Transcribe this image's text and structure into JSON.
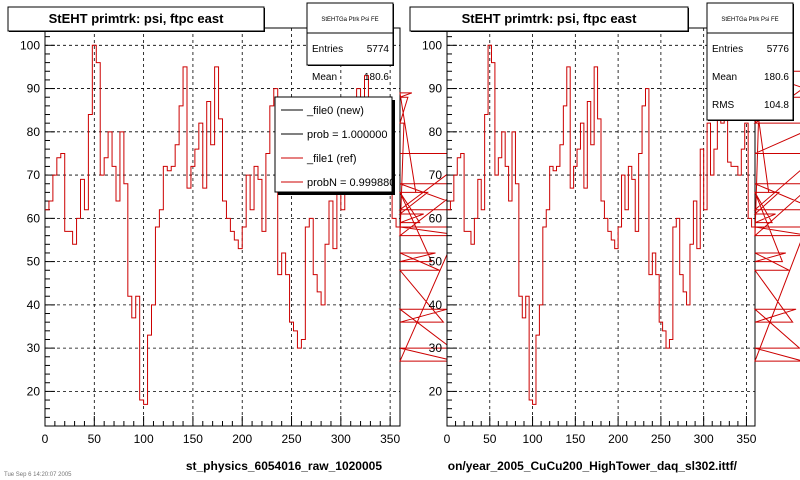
{
  "chart_data": [
    {
      "type": "histogram",
      "title": "StEHT primtrk: psi, ftpc east",
      "xlabel": "st_physics_6054016_raw_1020005",
      "xlim": [
        0,
        360
      ],
      "ylim": [
        12,
        104
      ],
      "x_ticks": [
        "0",
        "50",
        "100",
        "150",
        "200",
        "250",
        "300",
        "350"
      ],
      "y_ticks": [
        "20",
        "30",
        "40",
        "50",
        "60",
        "70",
        "80",
        "90",
        "100"
      ],
      "grid": true,
      "bin_width": 4,
      "series": [
        {
          "name": "_file0 (new)",
          "color": "#000000",
          "values": []
        },
        {
          "name": "_file1 (ref)",
          "color": "#cc0000",
          "values": [
            62,
            64,
            70,
            74,
            75,
            57,
            57,
            54,
            60,
            69,
            62,
            84,
            100,
            96,
            70,
            74,
            80,
            72,
            64,
            80,
            68,
            42,
            37,
            42,
            18,
            17,
            33,
            40,
            58,
            62,
            72,
            71,
            72,
            77,
            86,
            95,
            67,
            72,
            76,
            82,
            67,
            87,
            77,
            95,
            83,
            64,
            60,
            57,
            55,
            53,
            58,
            70,
            62,
            72,
            69,
            57,
            75,
            86,
            90,
            47,
            52,
            47,
            36,
            34,
            30,
            32,
            58,
            60,
            47,
            43,
            40,
            54,
            64,
            53,
            76,
            62,
            82,
            70,
            76,
            90,
            82,
            93,
            73,
            72,
            72,
            70,
            76,
            82,
            60,
            58,
            56,
            82,
            88,
            89,
            66,
            59,
            61,
            66,
            50,
            52,
            48,
            36,
            39,
            30,
            27,
            58,
            56,
            68,
            62,
            75
          ]
        },
        {
          "name": "",
          "color": "#cc0000",
          "values": []
        }
      ],
      "legend": [
        {
          "label": "_file0 (new)",
          "color": "#000000"
        },
        {
          "label": "prob = 1.000000",
          "color": "#000000"
        },
        {
          "label": "_file1 (ref)",
          "color": "#cc0000"
        },
        {
          "label": "probN = 0.999880",
          "color": "#cc0000"
        }
      ],
      "stats": {
        "name": "StEHTGa Ptrk Psi FE",
        "rows": [
          [
            "Entries",
            "5774"
          ],
          [
            "Mean",
            "180.6"
          ]
        ]
      }
    },
    {
      "type": "histogram",
      "title": "StEHT primtrk: psi, ftpc east",
      "xlabel": "on/year_2005_CuCu200_HighTower_daq_sl302.ittf/",
      "xlim": [
        0,
        360
      ],
      "ylim": [
        12,
        104
      ],
      "x_ticks": [
        "0",
        "50",
        "100",
        "150",
        "200",
        "250",
        "300",
        "350"
      ],
      "y_ticks": [
        "20",
        "30",
        "40",
        "50",
        "60",
        "70",
        "80",
        "90",
        "100"
      ],
      "grid": true,
      "bin_width": 4,
      "series": [
        {
          "name": "",
          "color": "#cc0000",
          "values": [
            62,
            64,
            70,
            74,
            75,
            57,
            57,
            54,
            60,
            69,
            62,
            84,
            100,
            96,
            70,
            74,
            80,
            72,
            64,
            80,
            68,
            42,
            37,
            42,
            18,
            17,
            33,
            40,
            58,
            62,
            72,
            71,
            72,
            77,
            86,
            95,
            67,
            72,
            76,
            82,
            67,
            87,
            77,
            95,
            83,
            64,
            60,
            57,
            55,
            53,
            58,
            70,
            62,
            72,
            69,
            57,
            75,
            86,
            90,
            47,
            52,
            47,
            36,
            34,
            30,
            32,
            58,
            60,
            47,
            43,
            40,
            54,
            64,
            53,
            76,
            62,
            82,
            70,
            76,
            90,
            82,
            93,
            73,
            72,
            72,
            70,
            76,
            82,
            60,
            58,
            56,
            82,
            88,
            89,
            66,
            59,
            61,
            66,
            50,
            52,
            48,
            36,
            39,
            30,
            27,
            58,
            56,
            68,
            62,
            75,
            82,
            94,
            88
          ]
        }
      ],
      "legend": [],
      "stats": {
        "name": "StEHTGa Ptrk Psi FE",
        "rows": [
          [
            "Entries",
            "5776"
          ],
          [
            "Mean",
            "180.6"
          ],
          [
            "RMS",
            "104.8"
          ]
        ]
      }
    }
  ],
  "footer_text": "Tue Sep  6 14:20:07 2005"
}
